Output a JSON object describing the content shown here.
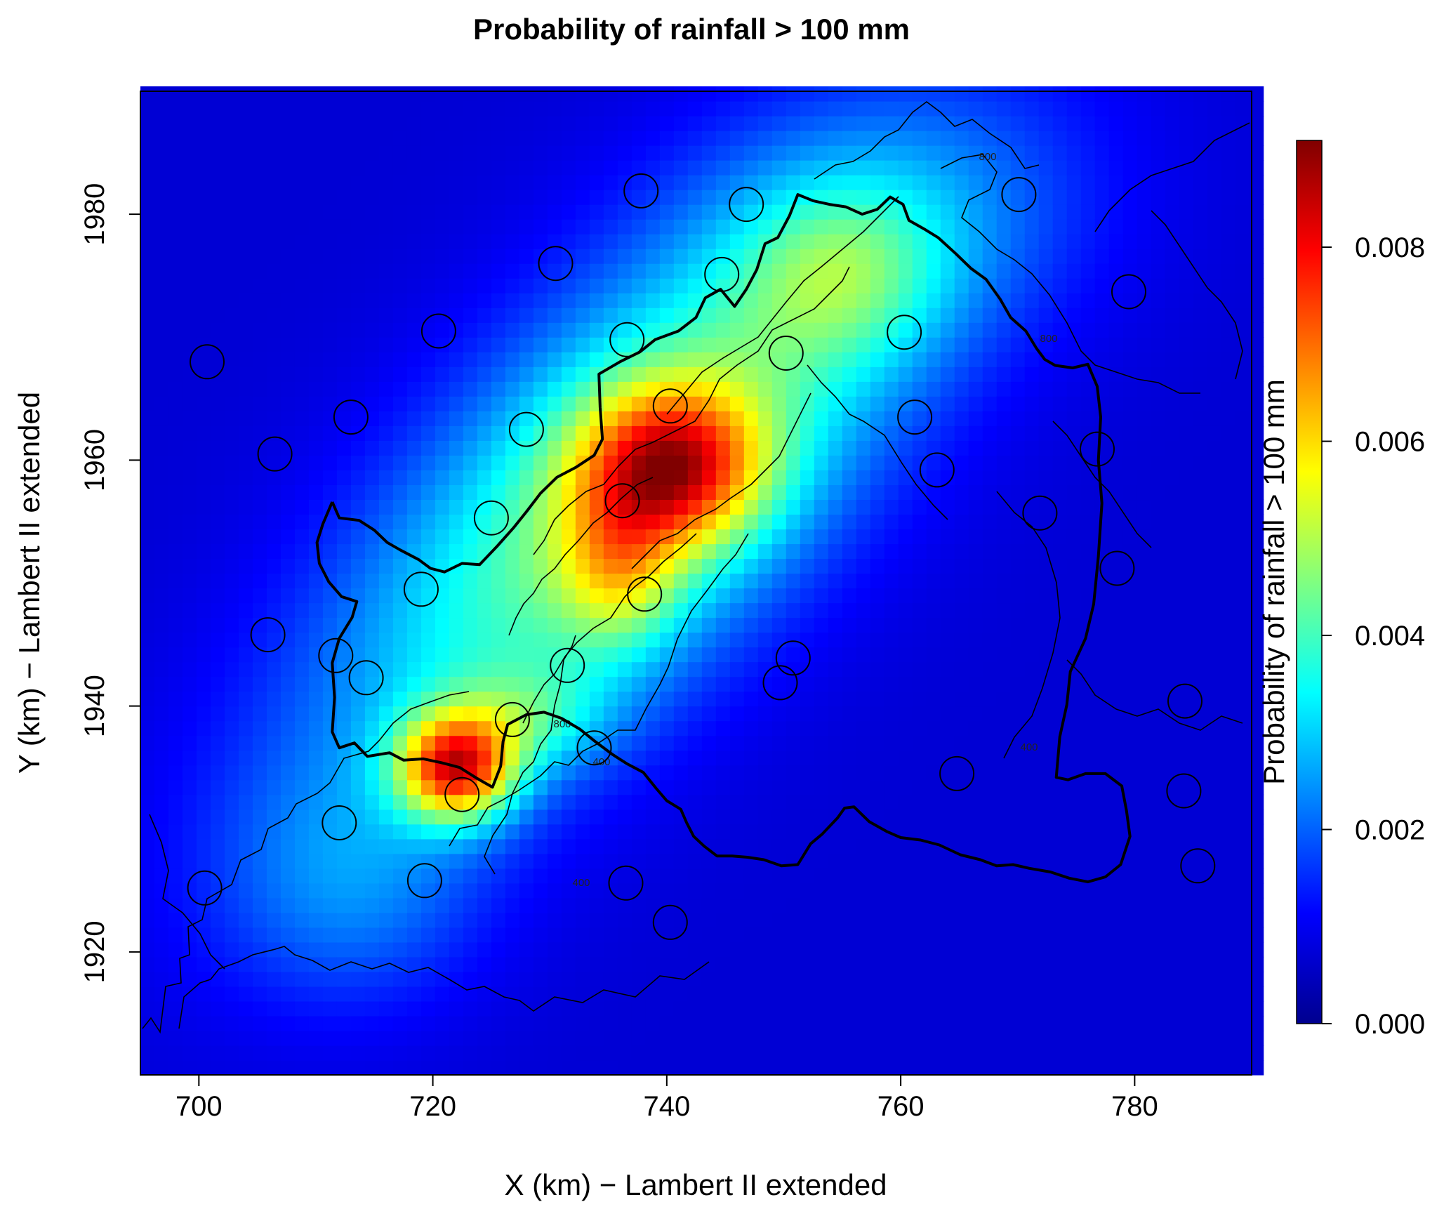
{
  "chart_data": {
    "type": "heatmap",
    "title": "Probability of rainfall > 100 mm",
    "xlabel": "X (km) − Lambert II extended",
    "ylabel": "Y (km) − Lambert II extended",
    "colorbar_label": "Probability of rainfall > 100 mm",
    "xlim": [
      695,
      790
    ],
    "ylim": [
      1910,
      1990
    ],
    "x_ticks": [
      700,
      720,
      740,
      760,
      780
    ],
    "y_ticks": [
      1920,
      1940,
      1960,
      1980
    ],
    "zlim": [
      0,
      0.0091
    ],
    "colorbar_ticks": [
      "0.000",
      "0.002",
      "0.004",
      "0.006",
      "0.008"
    ],
    "colormap": [
      "#00008f",
      "#0000ff",
      "#0080ff",
      "#00ffff",
      "#80ff80",
      "#ffff00",
      "#ff8000",
      "#ff0000",
      "#800000"
    ],
    "grid": false,
    "field_model": {
      "base": 0.0007,
      "ridge": {
        "x": 737,
        "y": 1958,
        "amplitude": 0.004,
        "sigma_along": 23,
        "sigma_across": 9.5,
        "angle_deg": 43
      },
      "peaks": [
        {
          "x": 740.5,
          "y": 1959.5,
          "amplitude": 0.0045,
          "sx": 5.5,
          "sy": 4.5
        },
        {
          "x": 736,
          "y": 1951,
          "amplitude": 0.002,
          "sx": 3.5,
          "sy": 4.5
        },
        {
          "x": 722,
          "y": 1935,
          "amplitude": 0.0058,
          "sx": 3.5,
          "sy": 3.0
        },
        {
          "x": 728,
          "y": 1939,
          "amplitude": 0.0015,
          "sx": 5,
          "sy": 3
        },
        {
          "x": 755,
          "y": 1975,
          "amplitude": 0.0015,
          "sx": 6,
          "sy": 5
        },
        {
          "x": 760,
          "y": 1980,
          "amplitude": 0.0008,
          "sx": 12,
          "sy": 7
        },
        {
          "x": 713,
          "y": 1925,
          "amplitude": 0.0012,
          "sx": 8,
          "sy": 7
        }
      ]
    },
    "stations": [
      [
        700.7,
        1968
      ],
      [
        713,
        1963.5
      ],
      [
        706.5,
        1960.5
      ],
      [
        705.9,
        1945.8
      ],
      [
        711.7,
        1944.1
      ],
      [
        714.3,
        1942.3
      ],
      [
        720.5,
        1970.5
      ],
      [
        730.5,
        1976
      ],
      [
        728,
        1962.5
      ],
      [
        725,
        1955.3
      ],
      [
        719,
        1949.5
      ],
      [
        712,
        1930.5
      ],
      [
        700.5,
        1925.2
      ],
      [
        719.3,
        1925.8
      ],
      [
        722.5,
        1932.8
      ],
      [
        726.8,
        1938.9
      ],
      [
        731.5,
        1943.3
      ],
      [
        733.8,
        1936.6
      ],
      [
        737.8,
        1981.9
      ],
      [
        744.7,
        1975.1
      ],
      [
        746.8,
        1980.8
      ],
      [
        736.6,
        1969.8
      ],
      [
        740.3,
        1964.4
      ],
      [
        736.2,
        1956.7
      ],
      [
        738.1,
        1949.1
      ],
      [
        736.5,
        1925.6
      ],
      [
        740.3,
        1922.4
      ],
      [
        750.2,
        1968.7
      ],
      [
        750.8,
        1943.9
      ],
      [
        749.7,
        1941.9
      ],
      [
        760.3,
        1970.4
      ],
      [
        761.2,
        1963.5
      ],
      [
        763.1,
        1959.2
      ],
      [
        764.8,
        1934.5
      ],
      [
        770.1,
        1981.6
      ],
      [
        771.9,
        1955.7
      ],
      [
        776.8,
        1960.9
      ],
      [
        778.5,
        1951.2
      ],
      [
        779.5,
        1973.7
      ],
      [
        784.3,
        1940.4
      ],
      [
        784.2,
        1933.1
      ],
      [
        785.4,
        1927
      ]
    ],
    "contour_labels": [
      "800",
      "800",
      "800",
      "400",
      "400",
      "400"
    ],
    "series": [
      {
        "name": "catchment boundary",
        "points": [
          [
            711.4,
            1956.6
          ],
          [
            712,
            1955.3
          ],
          [
            713.7,
            1955.1
          ],
          [
            715,
            1954.3
          ],
          [
            716.1,
            1953.3
          ],
          [
            717.2,
            1952.7
          ],
          [
            718.8,
            1951.9
          ],
          [
            719.8,
            1951.2
          ],
          [
            721,
            1950.9
          ],
          [
            722.5,
            1951.6
          ],
          [
            724,
            1951.5
          ],
          [
            725.5,
            1953
          ],
          [
            726.9,
            1954.5
          ],
          [
            728,
            1955.8
          ],
          [
            729.2,
            1957.3
          ],
          [
            730.6,
            1958.6
          ],
          [
            732.2,
            1959.4
          ],
          [
            733.8,
            1960.4
          ],
          [
            734.5,
            1961.7
          ],
          [
            734.3,
            1964.3
          ],
          [
            734.2,
            1967
          ],
          [
            736,
            1968
          ],
          [
            737.7,
            1968.8
          ],
          [
            739,
            1969.8
          ],
          [
            741,
            1970.5
          ],
          [
            742.5,
            1971.6
          ],
          [
            743.3,
            1973.2
          ],
          [
            744.6,
            1973.9
          ],
          [
            745.8,
            1972.5
          ],
          [
            746.8,
            1973.9
          ],
          [
            747.7,
            1975.5
          ],
          [
            748.4,
            1977.6
          ],
          [
            749.5,
            1978.1
          ],
          [
            750.5,
            1979.9
          ],
          [
            751.2,
            1981.6
          ],
          [
            752.5,
            1981.1
          ],
          [
            753.9,
            1980.8
          ],
          [
            755.3,
            1980.6
          ],
          [
            756.7,
            1980
          ],
          [
            758,
            1980.4
          ],
          [
            759.1,
            1981.4
          ],
          [
            760.2,
            1980.8
          ],
          [
            760.7,
            1979.5
          ],
          [
            762,
            1978.8
          ],
          [
            763.2,
            1978.1
          ],
          [
            764.7,
            1976.8
          ],
          [
            766,
            1975.6
          ],
          [
            767.3,
            1974.7
          ],
          [
            768.5,
            1973.1
          ],
          [
            769.4,
            1971.6
          ],
          [
            770.7,
            1970.5
          ],
          [
            771.6,
            1969.1
          ],
          [
            772.3,
            1968.2
          ],
          [
            773.2,
            1967.7
          ],
          [
            774.7,
            1967.5
          ],
          [
            776,
            1967.8
          ],
          [
            776.8,
            1966
          ],
          [
            777.1,
            1963.5
          ],
          [
            776.9,
            1960
          ],
          [
            777.2,
            1956.5
          ],
          [
            776.9,
            1952.2
          ],
          [
            776.5,
            1948.3
          ],
          [
            775.8,
            1945.5
          ],
          [
            774.5,
            1942.8
          ],
          [
            774.2,
            1940.1
          ],
          [
            773.6,
            1937.5
          ],
          [
            773.3,
            1934.2
          ],
          [
            774.3,
            1934
          ],
          [
            775.8,
            1934.5
          ],
          [
            777.5,
            1934.5
          ],
          [
            778.9,
            1933.5
          ],
          [
            779.3,
            1931.5
          ],
          [
            779.6,
            1929.4
          ],
          [
            778.8,
            1927.1
          ],
          [
            777.5,
            1926.1
          ],
          [
            776,
            1925.7
          ],
          [
            774.4,
            1926
          ],
          [
            772.8,
            1926.5
          ],
          [
            771,
            1926.8
          ],
          [
            769.6,
            1927.1
          ],
          [
            768.2,
            1927
          ],
          [
            766.8,
            1927.5
          ],
          [
            765.1,
            1927.9
          ],
          [
            763.3,
            1928.7
          ],
          [
            761.7,
            1929.1
          ],
          [
            760,
            1929.3
          ],
          [
            758.8,
            1929.8
          ],
          [
            757.3,
            1930.6
          ],
          [
            756,
            1931.8
          ],
          [
            755.2,
            1931.7
          ],
          [
            754.6,
            1930.9
          ],
          [
            753.3,
            1929.6
          ],
          [
            752.3,
            1928.8
          ],
          [
            751.2,
            1927.1
          ],
          [
            749.8,
            1927
          ],
          [
            748.3,
            1927.5
          ],
          [
            746.9,
            1927.7
          ],
          [
            745.6,
            1927.8
          ],
          [
            744.3,
            1927.8
          ],
          [
            743.2,
            1928.6
          ],
          [
            742.3,
            1929.4
          ],
          [
            741.7,
            1930.5
          ],
          [
            741.2,
            1931.6
          ],
          [
            740,
            1932.3
          ],
          [
            739.1,
            1933.3
          ],
          [
            738,
            1934.6
          ],
          [
            736.6,
            1935.3
          ],
          [
            735.3,
            1936.1
          ],
          [
            733.9,
            1937.1
          ],
          [
            732.6,
            1938.1
          ],
          [
            731,
            1939
          ],
          [
            729.5,
            1939.5
          ],
          [
            728,
            1939.3
          ],
          [
            726.4,
            1938.5
          ],
          [
            726,
            1937.1
          ],
          [
            725.8,
            1935.1
          ],
          [
            725.1,
            1933.4
          ],
          [
            723.8,
            1934.1
          ],
          [
            722.3,
            1935
          ],
          [
            720.7,
            1935.4
          ],
          [
            719.2,
            1935.7
          ],
          [
            717.5,
            1935.6
          ],
          [
            716.3,
            1936.2
          ],
          [
            714.4,
            1935.9
          ],
          [
            713.3,
            1937
          ],
          [
            712,
            1936.6
          ],
          [
            711.4,
            1937.9
          ],
          [
            711.6,
            1940.7
          ],
          [
            711.4,
            1943.5
          ],
          [
            712,
            1945.5
          ],
          [
            713.1,
            1947.2
          ],
          [
            713.5,
            1948.5
          ],
          [
            712.2,
            1948.9
          ],
          [
            711.1,
            1950.1
          ],
          [
            710.3,
            1951.6
          ],
          [
            710.1,
            1953.3
          ],
          [
            710.6,
            1954.8
          ],
          [
            711.4,
            1956.6
          ]
        ]
      }
    ]
  }
}
